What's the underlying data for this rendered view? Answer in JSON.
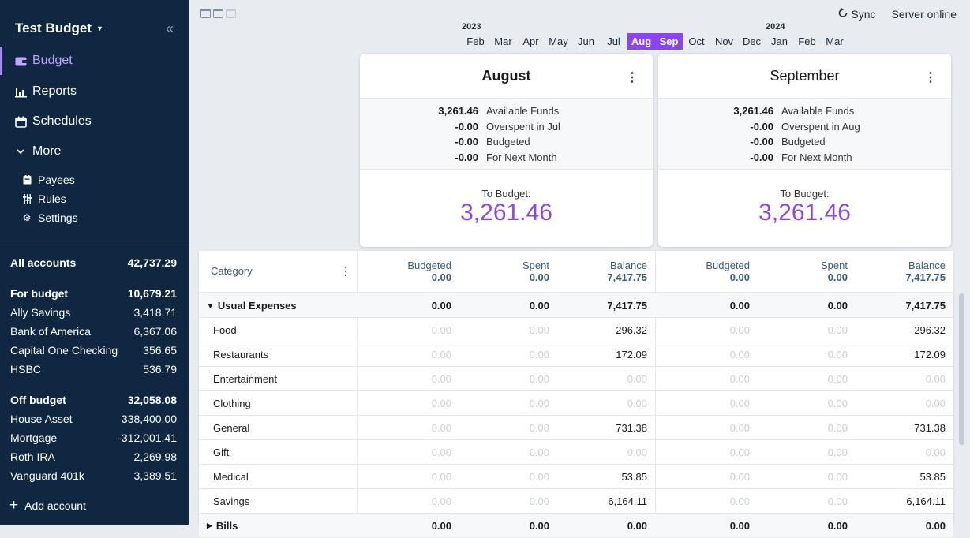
{
  "sidebar": {
    "budget_name": "Test Budget",
    "nav": [
      {
        "label": "Budget",
        "icon": "wallet-icon"
      },
      {
        "label": "Reports",
        "icon": "bar-chart-icon"
      },
      {
        "label": "Schedules",
        "icon": "calendar-icon"
      },
      {
        "label": "More",
        "icon": "chevron-down-icon"
      }
    ],
    "sub": [
      {
        "label": "Payees",
        "icon": "payees-icon"
      },
      {
        "label": "Rules",
        "icon": "sliders-icon"
      },
      {
        "label": "Settings",
        "icon": "gear-icon"
      }
    ],
    "all_accounts": {
      "name": "All accounts",
      "balance": "42,737.29"
    },
    "for_budget": {
      "name": "For budget",
      "balance": "10,679.21"
    },
    "on_accounts": [
      {
        "name": "Ally Savings",
        "balance": "3,418.71"
      },
      {
        "name": "Bank of America",
        "balance": "6,367.06"
      },
      {
        "name": "Capital One Checking",
        "balance": "356.65"
      },
      {
        "name": "HSBC",
        "balance": "536.79"
      }
    ],
    "off_budget": {
      "name": "Off budget",
      "balance": "32,058.08"
    },
    "off_accounts": [
      {
        "name": "House Asset",
        "balance": "338,400.00"
      },
      {
        "name": "Mortgage",
        "balance": "-312,001.41"
      },
      {
        "name": "Roth IRA",
        "balance": "2,269.98"
      },
      {
        "name": "Vanguard 401k",
        "balance": "3,389.51"
      }
    ],
    "add_account": "Add account"
  },
  "topbar": {
    "sync": "Sync",
    "server_status": "Server online"
  },
  "month_picker": {
    "year_left": "2023",
    "year_right": "2024",
    "months": [
      "Feb",
      "Mar",
      "Apr",
      "May",
      "Jun",
      "Jul",
      "Aug",
      "Sep",
      "Oct",
      "Nov",
      "Dec",
      "Jan",
      "Feb",
      "Mar"
    ],
    "selected": [
      "Aug",
      "Sep"
    ]
  },
  "cards": [
    {
      "title": "August",
      "available_funds": "3,261.46",
      "available_funds_label": "Available Funds",
      "overspent": "-0.00",
      "overspent_label": "Overspent in Jul",
      "budgeted": "-0.00",
      "budgeted_label": "Budgeted",
      "next_month": "-0.00",
      "next_month_label": "For Next Month",
      "to_budget_label": "To Budget:",
      "to_budget": "3,261.46"
    },
    {
      "title": "September",
      "available_funds": "3,261.46",
      "available_funds_label": "Available Funds",
      "overspent": "-0.00",
      "overspent_label": "Overspent in Aug",
      "budgeted": "-0.00",
      "budgeted_label": "Budgeted",
      "next_month": "-0.00",
      "next_month_label": "For Next Month",
      "to_budget_label": "To Budget:",
      "to_budget": "3,261.46"
    }
  ],
  "table": {
    "category_header": "Category",
    "col_labels": {
      "budgeted": "Budgeted",
      "spent": "Spent",
      "balance": "Balance"
    },
    "totals": [
      {
        "budgeted": "0.00",
        "spent": "0.00",
        "balance": "7,417.75"
      },
      {
        "budgeted": "0.00",
        "spent": "0.00",
        "balance": "7,417.75"
      }
    ],
    "rows": [
      {
        "name": "Usual Expenses",
        "group": true,
        "m": [
          [
            "0.00",
            "0.00",
            "7,417.75"
          ],
          [
            "0.00",
            "0.00",
            "7,417.75"
          ]
        ]
      },
      {
        "name": "Food",
        "group": false,
        "m": [
          [
            "0.00",
            "0.00",
            "296.32"
          ],
          [
            "0.00",
            "0.00",
            "296.32"
          ]
        ]
      },
      {
        "name": "Restaurants",
        "group": false,
        "m": [
          [
            "0.00",
            "0.00",
            "172.09"
          ],
          [
            "0.00",
            "0.00",
            "172.09"
          ]
        ]
      },
      {
        "name": "Entertainment",
        "group": false,
        "m": [
          [
            "0.00",
            "0.00",
            "0.00"
          ],
          [
            "0.00",
            "0.00",
            "0.00"
          ]
        ]
      },
      {
        "name": "Clothing",
        "group": false,
        "m": [
          [
            "0.00",
            "0.00",
            "0.00"
          ],
          [
            "0.00",
            "0.00",
            "0.00"
          ]
        ]
      },
      {
        "name": "General",
        "group": false,
        "m": [
          [
            "0.00",
            "0.00",
            "731.38"
          ],
          [
            "0.00",
            "0.00",
            "731.38"
          ]
        ]
      },
      {
        "name": "Gift",
        "group": false,
        "m": [
          [
            "0.00",
            "0.00",
            "0.00"
          ],
          [
            "0.00",
            "0.00",
            "0.00"
          ]
        ]
      },
      {
        "name": "Medical",
        "group": false,
        "m": [
          [
            "0.00",
            "0.00",
            "53.85"
          ],
          [
            "0.00",
            "0.00",
            "53.85"
          ]
        ]
      },
      {
        "name": "Savings",
        "group": false,
        "m": [
          [
            "0.00",
            "0.00",
            "6,164.11"
          ],
          [
            "0.00",
            "0.00",
            "6,164.11"
          ]
        ]
      },
      {
        "name": "Bills",
        "group": true,
        "collapsed": true,
        "m": [
          [
            "0.00",
            "0.00",
            "0.00"
          ],
          [
            "0.00",
            "0.00",
            "0.00"
          ]
        ]
      }
    ]
  }
}
